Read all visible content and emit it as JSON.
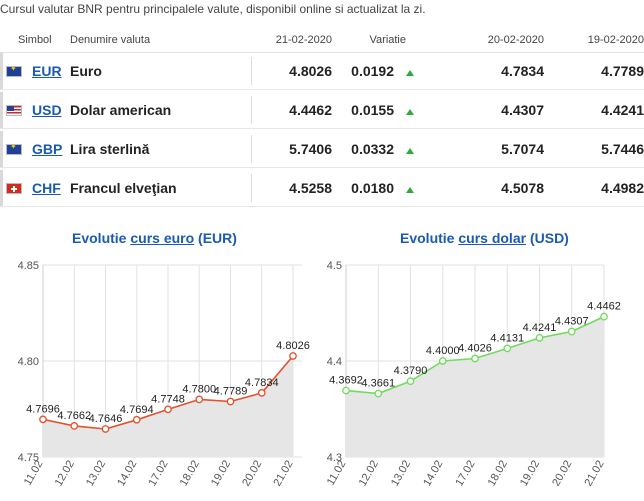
{
  "caption": "Cursul valutar BNR pentru principalele valute, disponibil online si actualizat la zi.",
  "table": {
    "headers": {
      "symbol": "Simbol",
      "name": "Denumire valuta",
      "d1": "21-02-2020",
      "variation": "Variatie",
      "d2": "20-02-2020",
      "d3": "19-02-2020"
    },
    "rows": [
      {
        "flag": "eu-flag-icon",
        "symbol": "EUR",
        "name": "Euro",
        "d1": "4.8026",
        "variation": "0.0192",
        "d2": "4.7834",
        "d3": "4.7789"
      },
      {
        "flag": "us-flag-icon",
        "symbol": "USD",
        "name": "Dolar american",
        "d1": "4.4462",
        "variation": "0.0155",
        "d2": "4.4307",
        "d3": "4.4241"
      },
      {
        "flag": "eu-flag-icon",
        "symbol": "GBP",
        "name": "Lira sterlină",
        "d1": "5.7406",
        "variation": "0.0332",
        "d2": "5.7074",
        "d3": "5.7446"
      },
      {
        "flag": "ch-flag-icon",
        "symbol": "CHF",
        "name": "Francul elveţian",
        "d1": "4.5258",
        "variation": "0.0180",
        "d2": "4.5078",
        "d3": "4.4982"
      }
    ],
    "variation_icon": "arrow-up-icon",
    "colors": {
      "link": "#1a5ab3",
      "up_arrow": "#2eaa3b"
    }
  },
  "chart_data": [
    {
      "type": "line",
      "title_prefix": "Evolutie ",
      "title_link": "curs euro",
      "title_suffix": " (EUR)",
      "categories": [
        "11.02",
        "12.02",
        "13.02",
        "14.02",
        "17.02",
        "18.02",
        "19.02",
        "20.02",
        "21.02"
      ],
      "values": [
        4.7696,
        4.7662,
        4.7646,
        4.7694,
        4.7748,
        4.78,
        4.7789,
        4.7834,
        4.8026
      ],
      "ylim": [
        4.75,
        4.85
      ],
      "yticks": [
        "4.75",
        "4.80",
        "4.85"
      ],
      "line_color": "#e0522a",
      "fill_color": "#e6e6e6",
      "grid": true
    },
    {
      "type": "line",
      "title_prefix": "Evolutie ",
      "title_link": "curs dolar",
      "title_suffix": " (USD)",
      "categories": [
        "11.02",
        "12.02",
        "13.02",
        "14.02",
        "17.02",
        "18.02",
        "19.02",
        "20.02",
        "21.02"
      ],
      "values": [
        4.3692,
        4.3661,
        4.379,
        4.4,
        4.4026,
        4.4131,
        4.4241,
        4.4307,
        4.4462
      ],
      "ylim": [
        4.3,
        4.5
      ],
      "yticks": [
        "4.3",
        "4.4",
        "4.5"
      ],
      "line_color": "#6edc5a",
      "fill_color": "#e6e6e6",
      "grid": true
    }
  ]
}
